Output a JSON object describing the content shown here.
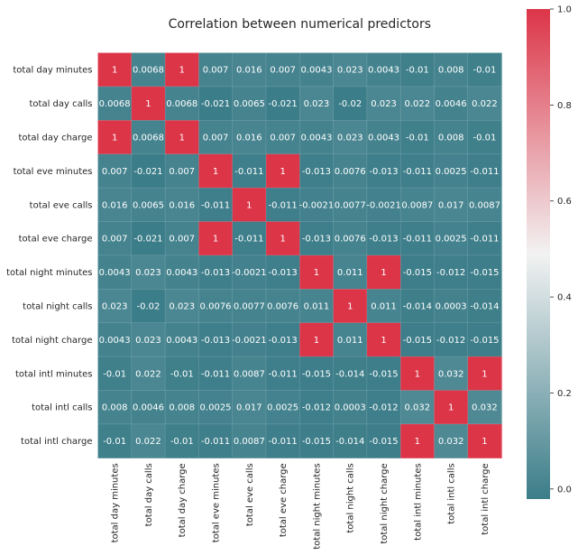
{
  "chart_data": {
    "type": "heatmap",
    "title": "Correlation between numerical predictors",
    "categories": [
      "total day minutes",
      "total day calls",
      "total day charge",
      "total eve minutes",
      "total eve calls",
      "total eve charge",
      "total night minutes",
      "total night calls",
      "total night charge",
      "total intl minutes",
      "total intl calls",
      "total intl charge"
    ],
    "cell_labels": [
      [
        "1",
        "0.0068",
        "1",
        "0.007",
        "0.016",
        "0.007",
        "0.0043",
        "0.023",
        "0.0043",
        "-0.01",
        "0.008",
        "-0.01"
      ],
      [
        "0.0068",
        "1",
        "0.0068",
        "-0.021",
        "0.0065",
        "-0.021",
        "0.023",
        "-0.02",
        "0.023",
        "0.022",
        "0.0046",
        "0.022"
      ],
      [
        "1",
        "0.0068",
        "1",
        "0.007",
        "0.016",
        "0.007",
        "0.0043",
        "0.023",
        "0.0043",
        "-0.01",
        "0.008",
        "-0.01"
      ],
      [
        "0.007",
        "-0.021",
        "0.007",
        "1",
        "-0.011",
        "1",
        "-0.013",
        "0.0076",
        "-0.013",
        "-0.011",
        "0.0025",
        "-0.011"
      ],
      [
        "0.016",
        "0.0065",
        "0.016",
        "-0.011",
        "1",
        "-0.011",
        "-0.0021",
        "0.0077",
        "-0.0021",
        "0.0087",
        "0.017",
        "0.0087"
      ],
      [
        "0.007",
        "-0.021",
        "0.007",
        "1",
        "-0.011",
        "1",
        "-0.013",
        "0.0076",
        "-0.013",
        "-0.011",
        "0.0025",
        "-0.011"
      ],
      [
        "0.0043",
        "0.023",
        "0.0043",
        "-0.013",
        "-0.0021",
        "-0.013",
        "1",
        "0.011",
        "1",
        "-0.015",
        "-0.012",
        "-0.015"
      ],
      [
        "0.023",
        "-0.02",
        "0.023",
        "0.0076",
        "0.0077",
        "0.0076",
        "0.011",
        "1",
        "0.011",
        "-0.014",
        "0.0003",
        "-0.014"
      ],
      [
        "0.0043",
        "0.023",
        "0.0043",
        "-0.013",
        "-0.0021",
        "-0.013",
        "1",
        "0.011",
        "1",
        "-0.015",
        "-0.012",
        "-0.015"
      ],
      [
        "-0.01",
        "0.022",
        "-0.01",
        "-0.011",
        "0.0087",
        "-0.011",
        "-0.015",
        "-0.014",
        "-0.015",
        "1",
        "0.032",
        "1"
      ],
      [
        "0.008",
        "0.0046",
        "0.008",
        "0.0025",
        "0.017",
        "0.0025",
        "-0.012",
        "0.0003",
        "-0.012",
        "0.032",
        "1",
        "0.032"
      ],
      [
        "-0.01",
        "0.022",
        "-0.01",
        "-0.011",
        "0.0087",
        "-0.011",
        "-0.015",
        "-0.014",
        "-0.015",
        "1",
        "0.032",
        "1"
      ]
    ],
    "colorbar": {
      "range": [
        -0.021,
        1
      ],
      "ticks": [
        "0.0",
        "0.2",
        "0.4",
        "0.6",
        "0.8",
        "1.0"
      ],
      "colors": {
        "low": "#3b7d89",
        "mid": "#f2f2f2",
        "high": "#dc3548"
      }
    }
  }
}
